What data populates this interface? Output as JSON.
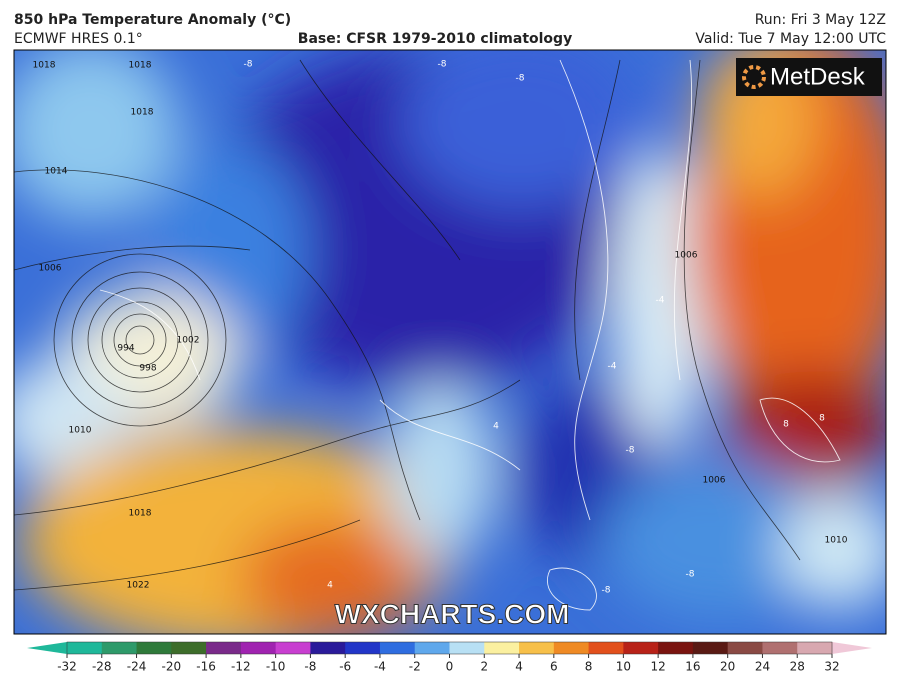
{
  "header": {
    "title": "850 hPa Temperature Anomaly (°C)",
    "model": "ECMWF HRES 0.1°",
    "base": "Base: CFSR 1979-2010 climatology",
    "run": "Run: Fri 3 May 12Z",
    "valid": "Valid: Tue 7 May 12:00 UTC"
  },
  "logo": "MetDesk",
  "watermark": "WXCHARTS.COM",
  "isobar_labels": [
    "1018",
    "1018",
    "1018",
    "1014",
    "1006",
    "994",
    "998",
    "1002",
    "1010",
    "1018",
    "1022",
    "1006",
    "1006",
    "1010"
  ],
  "anomaly_labels": [
    "-8",
    "-8",
    "-8",
    "-4",
    "4",
    "-8",
    "8",
    "8",
    "-8",
    "-8",
    "4",
    "-4"
  ],
  "colorbar": {
    "ticks": [
      -32,
      -28,
      -24,
      -20,
      -16,
      -12,
      -10,
      -8,
      -6,
      -4,
      -2,
      0,
      2,
      4,
      6,
      8,
      10,
      12,
      16,
      20,
      24,
      28,
      32
    ],
    "colors": [
      "#1fb89a",
      "#2e9a6a",
      "#2f7a3a",
      "#3d6d2a",
      "#7a2a8a",
      "#a023b0",
      "#c83fd0",
      "#2a1a9a",
      "#2236c8",
      "#2f6de0",
      "#5fa8ec",
      "#b8e0f4",
      "#fbf0a0",
      "#f7c04a",
      "#ef8a24",
      "#e2501c",
      "#b82218",
      "#7a1410",
      "#5a1a14",
      "#8a4a44",
      "#b07070",
      "#d8a8b0",
      "#f0c8d8"
    ]
  }
}
